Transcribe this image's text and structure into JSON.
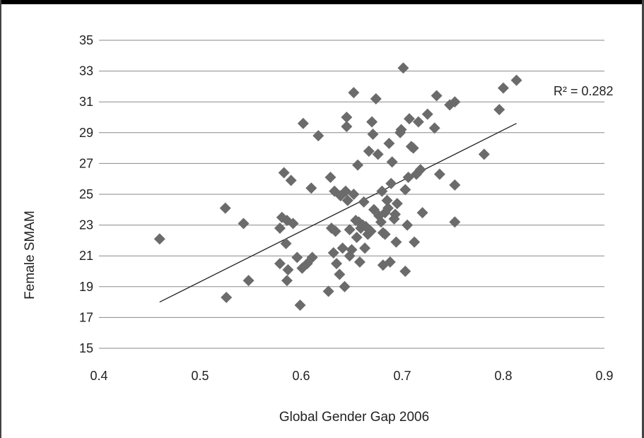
{
  "chart_data": {
    "type": "scatter",
    "title": "",
    "xlabel": "Global Gender Gap 2006",
    "ylabel": "Female SMAM",
    "xlim": [
      0.4,
      0.9
    ],
    "ylim": [
      15,
      35
    ],
    "x_ticks": [
      0.4,
      0.5,
      0.6,
      0.7,
      0.8,
      0.9
    ],
    "y_ticks": [
      15,
      17,
      19,
      21,
      23,
      25,
      27,
      29,
      31,
      33,
      35
    ],
    "x_tick_labels": [
      "0.4",
      "0.5",
      "0.6",
      "0.7",
      "0.8",
      "0.9"
    ],
    "y_tick_labels": [
      "15",
      "17",
      "19",
      "21",
      "23",
      "25",
      "27",
      "29",
      "31",
      "33",
      "35"
    ],
    "grid": "horizontal",
    "marker": "diamond",
    "marker_color": "#6b6b6b",
    "trendline": {
      "x": [
        0.46,
        0.813
      ],
      "y": [
        18.0,
        29.6
      ],
      "label": "R² = 0.282"
    },
    "points": [
      [
        0.46,
        22.1
      ],
      [
        0.525,
        24.1
      ],
      [
        0.526,
        18.3
      ],
      [
        0.543,
        23.1
      ],
      [
        0.548,
        19.4
      ],
      [
        0.579,
        22.8
      ],
      [
        0.579,
        20.5
      ],
      [
        0.581,
        23.5
      ],
      [
        0.583,
        26.4
      ],
      [
        0.585,
        21.8
      ],
      [
        0.586,
        23.3
      ],
      [
        0.586,
        19.4
      ],
      [
        0.587,
        20.1
      ],
      [
        0.59,
        25.9
      ],
      [
        0.592,
        23.1
      ],
      [
        0.596,
        20.9
      ],
      [
        0.599,
        17.8
      ],
      [
        0.601,
        20.2
      ],
      [
        0.602,
        29.6
      ],
      [
        0.606,
        20.5
      ],
      [
        0.61,
        25.4
      ],
      [
        0.611,
        20.9
      ],
      [
        0.617,
        28.8
      ],
      [
        0.627,
        18.7
      ],
      [
        0.629,
        26.1
      ],
      [
        0.63,
        22.8
      ],
      [
        0.632,
        21.2
      ],
      [
        0.633,
        25.2
      ],
      [
        0.634,
        22.6
      ],
      [
        0.635,
        20.5
      ],
      [
        0.638,
        19.8
      ],
      [
        0.639,
        24.9
      ],
      [
        0.641,
        21.5
      ],
      [
        0.643,
        19.0
      ],
      [
        0.644,
        25.2
      ],
      [
        0.645,
        29.4
      ],
      [
        0.645,
        30.0
      ],
      [
        0.646,
        24.6
      ],
      [
        0.648,
        22.7
      ],
      [
        0.648,
        21.0
      ],
      [
        0.65,
        21.4
      ],
      [
        0.652,
        25.0
      ],
      [
        0.652,
        31.6
      ],
      [
        0.654,
        23.3
      ],
      [
        0.655,
        22.2
      ],
      [
        0.656,
        26.9
      ],
      [
        0.657,
        23.2
      ],
      [
        0.658,
        20.6
      ],
      [
        0.659,
        22.8
      ],
      [
        0.661,
        23.0
      ],
      [
        0.662,
        24.5
      ],
      [
        0.663,
        21.5
      ],
      [
        0.664,
        22.9
      ],
      [
        0.666,
        22.4
      ],
      [
        0.667,
        27.8
      ],
      [
        0.669,
        22.6
      ],
      [
        0.67,
        29.7
      ],
      [
        0.671,
        28.9
      ],
      [
        0.672,
        24.0
      ],
      [
        0.674,
        31.2
      ],
      [
        0.676,
        27.6
      ],
      [
        0.677,
        23.6
      ],
      [
        0.679,
        23.2
      ],
      [
        0.68,
        25.2
      ],
      [
        0.681,
        20.4
      ],
      [
        0.681,
        22.5
      ],
      [
        0.683,
        22.4
      ],
      [
        0.683,
        23.8
      ],
      [
        0.685,
        24.6
      ],
      [
        0.686,
        24.1
      ],
      [
        0.687,
        28.3
      ],
      [
        0.688,
        20.6
      ],
      [
        0.689,
        25.7
      ],
      [
        0.69,
        27.1
      ],
      [
        0.692,
        23.4
      ],
      [
        0.693,
        23.7
      ],
      [
        0.694,
        21.9
      ],
      [
        0.695,
        24.4
      ],
      [
        0.698,
        29.0
      ],
      [
        0.699,
        29.2
      ],
      [
        0.701,
        33.2
      ],
      [
        0.703,
        25.3
      ],
      [
        0.703,
        20.0
      ],
      [
        0.705,
        23.0
      ],
      [
        0.706,
        26.1
      ],
      [
        0.707,
        29.9
      ],
      [
        0.709,
        28.1
      ],
      [
        0.711,
        28.0
      ],
      [
        0.712,
        21.9
      ],
      [
        0.714,
        26.3
      ],
      [
        0.716,
        29.7
      ],
      [
        0.718,
        26.6
      ],
      [
        0.72,
        23.8
      ],
      [
        0.725,
        30.2
      ],
      [
        0.732,
        29.3
      ],
      [
        0.734,
        31.4
      ],
      [
        0.737,
        26.3
      ],
      [
        0.747,
        30.8
      ],
      [
        0.752,
        31.0
      ],
      [
        0.752,
        25.6
      ],
      [
        0.752,
        23.2
      ],
      [
        0.781,
        27.6
      ],
      [
        0.796,
        30.5
      ],
      [
        0.8,
        31.9
      ],
      [
        0.813,
        32.4
      ]
    ]
  }
}
